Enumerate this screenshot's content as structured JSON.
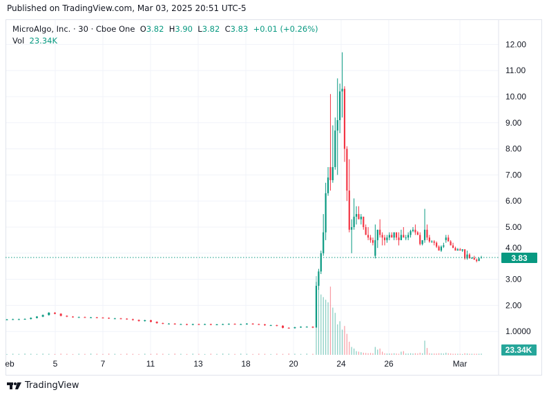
{
  "header": {
    "published": "Published on TradingView.com, Mar 03, 2025 20:51 UTC-5"
  },
  "legend": {
    "symbol": "MicroAlgo, Inc. · 30 · Cboe One",
    "o_label": "O",
    "o": "3.82",
    "h_label": "H",
    "h": "3.90",
    "l_label": "L",
    "l": "3.82",
    "c_label": "C",
    "c": "3.83",
    "change": "+0.01 (+0.26%)",
    "vol_label": "Vol",
    "vol": "23.34K"
  },
  "footer": {
    "brand": "TradingView"
  },
  "colors": {
    "up": "#089981",
    "down": "#f23645",
    "grid": "#f0f3fa",
    "last_price": "#089981",
    "vol_badge": "#26a69a"
  },
  "chart_data": {
    "type": "candlestick",
    "interval": "30",
    "y_ticks": [
      "12.00",
      "11.00",
      "10.00",
      "9.00",
      "8.00",
      "7.00",
      "6.00",
      "5.00",
      "4.00",
      "3.00",
      "2.00",
      "1.0000"
    ],
    "y_tick_values": [
      12,
      11,
      10,
      9,
      8,
      7,
      6,
      5,
      4,
      3,
      2,
      1
    ],
    "ylim": [
      0,
      12.4
    ],
    "x_ticks": [
      "eb",
      "5",
      "7",
      "11",
      "13",
      "18",
      "20",
      "24",
      "26",
      "Mar"
    ],
    "last_price_label": "3.83",
    "last_volume_label": "23.34K",
    "grid": true,
    "flat_closes": [
      1.46,
      1.47,
      1.47,
      1.48,
      1.52,
      1.57,
      1.63,
      1.72,
      1.68,
      1.6,
      1.57,
      1.55,
      1.55,
      1.54,
      1.54,
      1.53,
      1.52,
      1.5,
      1.5,
      1.49,
      1.47,
      1.44,
      1.4,
      1.43,
      1.37,
      1.32,
      1.3,
      1.3,
      1.28,
      1.28,
      1.26,
      1.28,
      1.27,
      1.28,
      1.26,
      1.27,
      1.28,
      1.29,
      1.28,
      1.28,
      1.3,
      1.28,
      1.27,
      1.24,
      1.24,
      1.22,
      1.14,
      1.13,
      1.16,
      1.18,
      1.18,
      1.15
    ],
    "ohlcv": [
      [
        1.15,
        2.9,
        2.6,
        2.75,
        1500
      ],
      [
        2.75,
        3.4,
        2.6,
        3.3,
        1250
      ],
      [
        3.3,
        4.1,
        3.2,
        4.0,
        1150
      ],
      [
        4.0,
        5.5,
        3.9,
        4.8,
        1100
      ],
      [
        4.8,
        6.7,
        4.5,
        6.3,
        1050
      ],
      [
        6.3,
        7.3,
        6.2,
        6.9,
        1000
      ],
      [
        7.3,
        10.1,
        6.4,
        6.8,
        1300
      ],
      [
        6.8,
        8.9,
        6.7,
        7.3,
        900
      ],
      [
        7.3,
        9.2,
        7.2,
        8.7,
        800
      ],
      [
        8.7,
        10.7,
        7.0,
        9.1,
        580
      ],
      [
        9.1,
        10.5,
        8.6,
        10.2,
        640
      ],
      [
        10.2,
        11.7,
        9.2,
        10.3,
        480
      ],
      [
        10.3,
        10.4,
        7.5,
        8.0,
        550
      ],
      [
        8.0,
        8.1,
        6.0,
        6.4,
        400
      ],
      [
        6.4,
        7.6,
        4.8,
        4.9,
        250
      ],
      [
        4.9,
        5.3,
        4.0,
        5.0,
        150
      ],
      [
        5.0,
        6.1,
        4.9,
        5.4,
        120
      ],
      [
        5.4,
        5.8,
        5.1,
        5.5,
        70
      ],
      [
        5.5,
        5.8,
        5.3,
        5.3,
        60
      ],
      [
        5.3,
        5.5,
        5.1,
        5.4,
        50
      ],
      [
        5.4,
        5.4,
        4.9,
        5.0,
        40
      ],
      [
        5.0,
        5.1,
        4.7,
        4.7,
        35
      ],
      [
        4.7,
        5.0,
        4.5,
        4.6,
        30
      ],
      [
        4.6,
        4.7,
        4.4,
        4.5,
        35
      ],
      [
        4.5,
        4.6,
        4.3,
        4.4,
        30
      ],
      [
        3.9,
        5.1,
        3.8,
        4.5,
        150
      ],
      [
        4.5,
        4.9,
        4.2,
        4.9,
        100
      ],
      [
        4.9,
        5.3,
        4.6,
        4.7,
        120
      ],
      [
        4.7,
        4.8,
        4.3,
        4.6,
        60
      ],
      [
        4.6,
        4.7,
        4.3,
        4.5,
        30
      ],
      [
        4.5,
        4.7,
        4.4,
        4.6,
        25
      ],
      [
        4.6,
        4.8,
        4.5,
        4.7,
        25
      ],
      [
        4.7,
        4.8,
        4.6,
        4.6,
        25
      ],
      [
        4.6,
        4.8,
        4.5,
        4.8,
        30
      ],
      [
        4.8,
        4.8,
        4.5,
        4.6,
        25
      ],
      [
        4.6,
        4.8,
        4.3,
        4.5,
        20
      ],
      [
        4.5,
        4.9,
        4.5,
        4.7,
        60
      ],
      [
        4.7,
        5.0,
        4.6,
        4.6,
        70
      ],
      [
        4.6,
        4.7,
        4.5,
        4.6,
        25
      ],
      [
        4.6,
        4.8,
        4.5,
        4.7,
        25
      ],
      [
        4.7,
        4.9,
        4.6,
        4.85,
        30
      ],
      [
        4.85,
        5.0,
        4.8,
        4.9,
        25
      ],
      [
        4.9,
        5.1,
        4.7,
        4.8,
        30
      ],
      [
        4.8,
        4.85,
        4.7,
        4.7,
        25
      ],
      [
        4.7,
        4.8,
        4.3,
        4.35,
        40
      ],
      [
        4.35,
        4.5,
        4.3,
        4.5,
        30
      ],
      [
        4.5,
        5.7,
        4.4,
        4.9,
        270
      ],
      [
        4.9,
        5.1,
        4.5,
        4.6,
        130
      ],
      [
        4.6,
        4.7,
        4.4,
        4.45,
        30
      ],
      [
        4.45,
        4.5,
        4.4,
        4.45,
        25
      ],
      [
        4.45,
        4.5,
        4.3,
        4.4,
        25
      ],
      [
        4.4,
        4.45,
        4.2,
        4.25,
        25
      ],
      [
        4.25,
        4.3,
        4.1,
        4.1,
        30
      ],
      [
        4.1,
        4.3,
        4.05,
        4.25,
        30
      ],
      [
        4.25,
        4.4,
        4.2,
        4.3,
        25
      ],
      [
        4.5,
        4.7,
        4.4,
        4.6,
        40
      ],
      [
        4.6,
        4.7,
        4.5,
        4.45,
        30
      ],
      [
        4.45,
        4.5,
        4.3,
        4.3,
        25
      ],
      [
        4.3,
        4.4,
        4.2,
        4.2,
        20
      ],
      [
        4.2,
        4.25,
        4.1,
        4.1,
        20
      ],
      [
        4.1,
        4.2,
        4.1,
        4.15,
        20
      ],
      [
        4.15,
        4.2,
        4.1,
        4.1,
        20
      ],
      [
        4.1,
        4.15,
        4.05,
        4.15,
        15
      ],
      [
        4.15,
        4.15,
        3.75,
        3.8,
        30
      ],
      [
        3.8,
        4.1,
        3.75,
        3.95,
        25
      ],
      [
        3.95,
        4.0,
        3.8,
        3.8,
        20
      ],
      [
        3.8,
        3.85,
        3.78,
        3.82,
        20
      ],
      [
        3.82,
        3.9,
        3.75,
        3.75,
        20
      ],
      [
        3.75,
        3.8,
        3.65,
        3.7,
        20
      ],
      [
        3.7,
        3.85,
        3.7,
        3.8,
        20
      ],
      [
        3.82,
        3.9,
        3.82,
        3.83,
        23.34
      ]
    ]
  }
}
